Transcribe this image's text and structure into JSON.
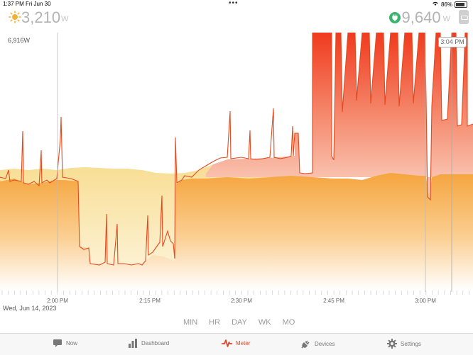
{
  "status_bar": {
    "time": "1:37 PM",
    "date": "Fri Jun 30",
    "battery": "86%",
    "battery_level": 0.86
  },
  "header": {
    "solar_value": "3,210",
    "solar_unit": "W",
    "grid_value": "9,640",
    "grid_unit": "W"
  },
  "chart": {
    "peak_label": "6,916W",
    "current_time": "3:04 PM",
    "date_label": "Wed, Jun 14, 2023",
    "x_ticks": [
      "2:00 PM",
      "2:15 PM",
      "2:30 PM",
      "2:45 PM",
      "3:00 PM"
    ]
  },
  "ranges": [
    "MIN",
    "HR",
    "DAY",
    "WK",
    "MO"
  ],
  "tabs": [
    {
      "label": "Now",
      "icon": "chat-bubble-icon",
      "active": false
    },
    {
      "label": "Dashboard",
      "icon": "bar-chart-icon",
      "active": false
    },
    {
      "label": "Meter",
      "icon": "pulse-icon",
      "active": true
    },
    {
      "label": "Devices",
      "icon": "plug-icon",
      "active": false
    },
    {
      "label": "Settings",
      "icon": "gear-icon",
      "active": false
    }
  ],
  "colors": {
    "accent": "#d64a2d",
    "solar": "#f2b54b",
    "usage": "#e8492e"
  }
}
